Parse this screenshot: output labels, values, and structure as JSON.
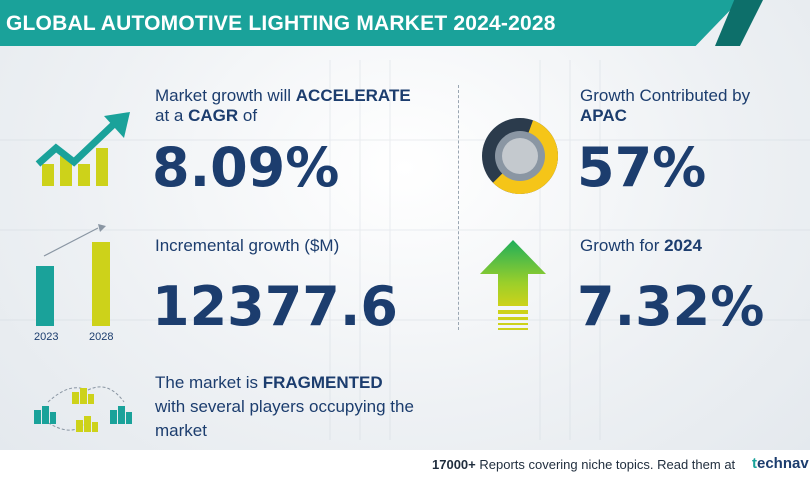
{
  "header": {
    "title": "GLOBAL AUTOMOTIVE LIGHTING MARKET 2024-2028"
  },
  "cagr": {
    "line1_prefix": "Market growth will ",
    "line1_bold": "ACCELERATE",
    "line2_prefix": "at a ",
    "line2_bold": "CAGR",
    "line2_suffix": "  of",
    "value": "8.09%"
  },
  "incremental": {
    "label": "Incremental growth ($M)",
    "value": "12377.6",
    "bar_years": [
      "2023",
      "2028"
    ]
  },
  "market": {
    "line1_prefix": "The market is ",
    "line1_bold": "FRAGMENTED",
    "line2": "with several players occupying the",
    "line3": "market"
  },
  "apac": {
    "line1": "Growth Contributed by",
    "line2_bold": "APAC",
    "value": "57%",
    "share": 0.57
  },
  "growth2024": {
    "label_prefix": "Growth for  ",
    "label_bold": "2024",
    "value": "7.32%"
  },
  "footer": {
    "count_bold": "17000+",
    "text": " Reports covering niche topics. Read them at",
    "logo_prefix": "t",
    "logo_rest": "echnav"
  },
  "colors": {
    "teal": "#1aa29a",
    "dark_teal": "#0d6f6a",
    "navy": "#1c3d6e",
    "yellow": "#f5c518",
    "lime": "#cdd21a",
    "green_arrow": "#1fae5a"
  }
}
